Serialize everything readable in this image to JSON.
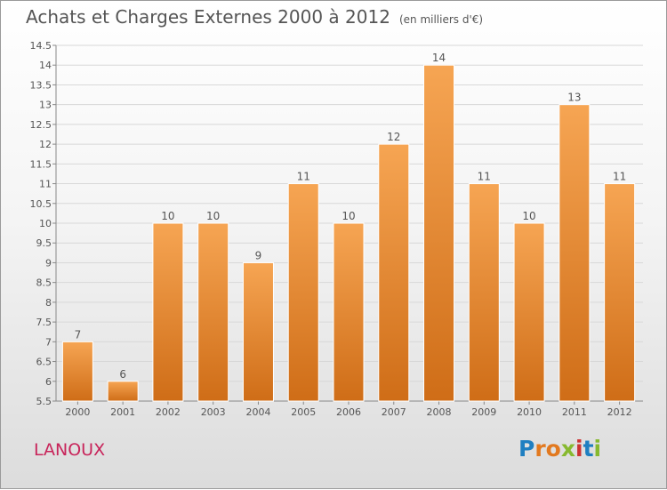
{
  "header": {
    "title": "Achats et Charges Externes 2000 à 2012",
    "subtitle": "(en milliers d'€)"
  },
  "footer": {
    "commune": "LANOUX",
    "brand_letters": [
      "P",
      "r",
      "o",
      "x",
      "i",
      "t",
      "i"
    ]
  },
  "colors": {
    "bar_top": "#f6a553",
    "bar_bottom": "#cf6d17",
    "grid": "#d8d8d8",
    "axis": "#888888",
    "text": "#555555",
    "commune": "#c8245a",
    "brand": [
      "#1f7fc1",
      "#e2791f",
      "#e2791f",
      "#87b92f",
      "#cc3333",
      "#1f7fc1",
      "#87b92f"
    ]
  },
  "chart_data": {
    "type": "bar",
    "categories": [
      "2000",
      "2001",
      "2002",
      "2003",
      "2004",
      "2005",
      "2006",
      "2007",
      "2008",
      "2009",
      "2010",
      "2011",
      "2012"
    ],
    "values": [
      7,
      6,
      10,
      10,
      9,
      11,
      10,
      12,
      14,
      11,
      10,
      13,
      11
    ],
    "data_labels": [
      "7",
      "6",
      "10",
      "10",
      "9",
      "11",
      "10",
      "12",
      "14",
      "11",
      "10",
      "13",
      "11"
    ],
    "yticks": [
      5.5,
      6,
      6.5,
      7,
      7.5,
      8,
      8.5,
      9,
      9.5,
      10,
      10.5,
      11,
      11.5,
      12,
      12.5,
      13,
      13.5,
      14,
      14.5
    ],
    "ytick_labels": [
      "5.5",
      "6",
      "6.5",
      "7",
      "7.5",
      "8",
      "8.5",
      "9",
      "9.5",
      "10",
      "10.5",
      "11",
      "11.5",
      "12",
      "12.5",
      "13",
      "13.5",
      "14",
      "14.5"
    ],
    "ylim": [
      5.5,
      14.5
    ],
    "grid": true,
    "legend": "none"
  }
}
